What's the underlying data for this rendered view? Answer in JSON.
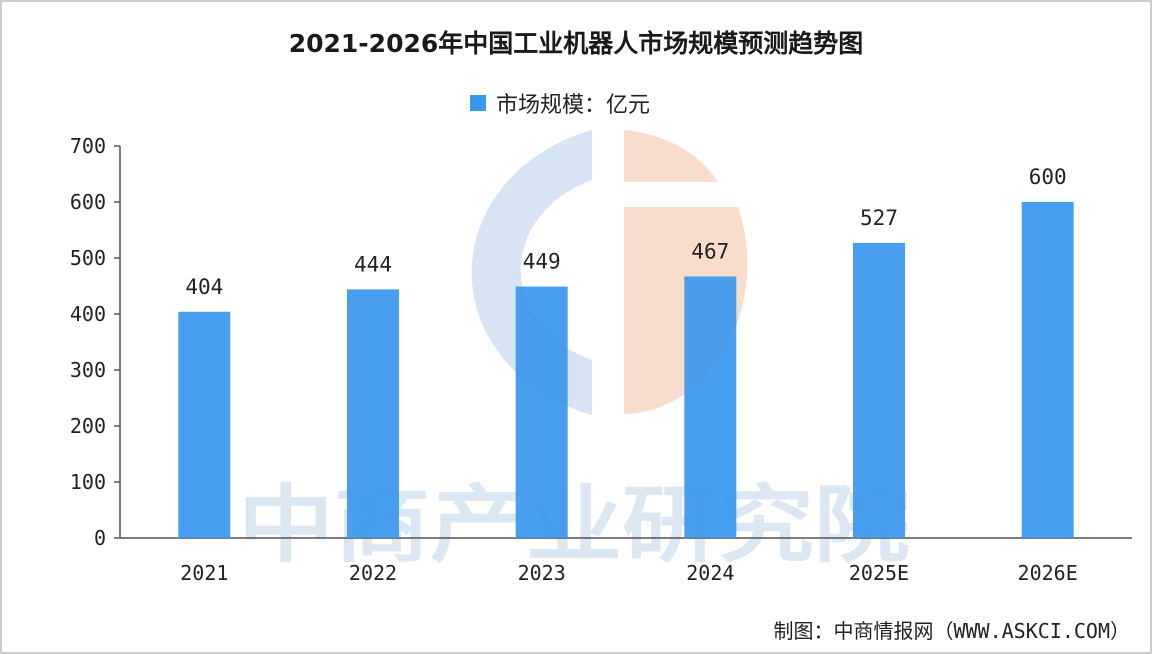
{
  "chart_data": {
    "type": "bar",
    "title": "2021-2026年中国工业机器人市场规模预测趋势图",
    "categories": [
      "2021",
      "2022",
      "2023",
      "2024",
      "2025E",
      "2026E"
    ],
    "series": [
      {
        "name": "市场规模：亿元",
        "values": [
          404,
          444,
          449,
          467,
          527,
          600
        ]
      }
    ],
    "data_labels": [
      "404",
      "444",
      "449",
      "467",
      "527",
      "600"
    ],
    "yticks": [
      "0",
      "100",
      "200",
      "300",
      "400",
      "500",
      "600",
      "700"
    ],
    "ylim": [
      0,
      700
    ],
    "xlabel": "",
    "ylabel": "",
    "grid": false,
    "legend": "top-center",
    "bar_color": "#3a97ee"
  },
  "source": "制图：中商情报网（WWW.ASKCI.COM）",
  "watermark": {
    "text": "中商产业研究院",
    "colors": {
      "blue": "#d6e4f3",
      "orange": "#f8dccc"
    }
  }
}
